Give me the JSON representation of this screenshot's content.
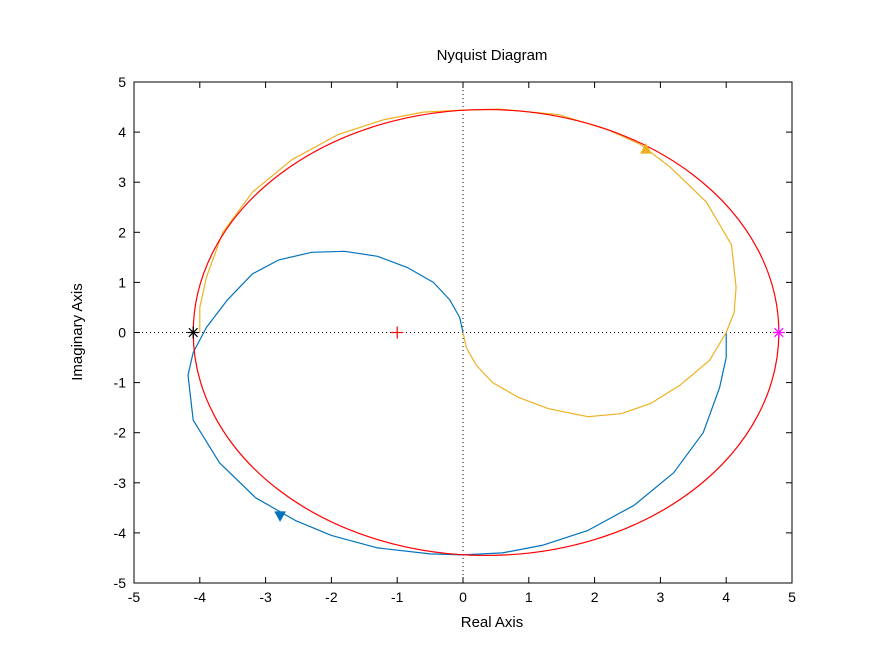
{
  "chart_data": {
    "type": "line",
    "title": "Nyquist Diagram",
    "xlabel": "Real Axis",
    "ylabel": "Imaginary Axis",
    "xlim": [
      -5,
      5
    ],
    "ylim": [
      -5,
      5
    ],
    "xticks": [
      "-5",
      "-4",
      "-3",
      "-2",
      "-1",
      "0",
      "1",
      "2",
      "3",
      "4",
      "5"
    ],
    "yticks": [
      "-5",
      "-4",
      "-3",
      "-2",
      "-1",
      "0",
      "1",
      "2",
      "3",
      "4",
      "5"
    ],
    "grid": false,
    "zero_lines": "dotted",
    "colors": {
      "blue": "#0072BD",
      "orange": "#EDB120",
      "red": "#FF0000",
      "black": "#000000",
      "magenta": "#FF00FF"
    },
    "series": [
      {
        "color": "#0072BD",
        "points": [
          [
            0,
            0
          ],
          [
            -0.05,
            0.3
          ],
          [
            -0.2,
            0.65
          ],
          [
            -0.45,
            1.0
          ],
          [
            -0.85,
            1.3
          ],
          [
            -1.3,
            1.52
          ],
          [
            -1.8,
            1.62
          ],
          [
            -2.3,
            1.6
          ],
          [
            -2.8,
            1.45
          ],
          [
            -3.2,
            1.17
          ],
          [
            -3.58,
            0.65
          ],
          [
            -3.9,
            0.1
          ],
          [
            -4.1,
            -0.4
          ],
          [
            -4.18,
            -0.85
          ],
          [
            -4.1,
            -1.75
          ],
          [
            -3.7,
            -2.6
          ],
          [
            -3.15,
            -3.3
          ],
          [
            -2.55,
            -3.75
          ],
          [
            -2.0,
            -4.05
          ],
          [
            -1.3,
            -4.3
          ],
          [
            -0.5,
            -4.42
          ],
          [
            0,
            -4.44
          ],
          [
            0.6,
            -4.4
          ],
          [
            1.2,
            -4.25
          ],
          [
            1.9,
            -3.95
          ],
          [
            2.6,
            -3.45
          ],
          [
            3.2,
            -2.8
          ],
          [
            3.65,
            -2.0
          ],
          [
            3.9,
            -1.1
          ],
          [
            4.0,
            -0.5
          ],
          [
            4.0,
            0
          ]
        ]
      },
      {
        "color": "#EDB120",
        "points": [
          [
            0,
            0
          ],
          [
            0.05,
            -0.3
          ],
          [
            0.2,
            -0.65
          ],
          [
            0.45,
            -1.0
          ],
          [
            0.85,
            -1.3
          ],
          [
            1.3,
            -1.52
          ],
          [
            1.9,
            -1.68
          ],
          [
            2.4,
            -1.62
          ],
          [
            2.85,
            -1.42
          ],
          [
            3.3,
            -1.05
          ],
          [
            3.75,
            -0.55
          ],
          [
            4.0,
            0
          ],
          [
            4.12,
            0.4
          ],
          [
            4.15,
            0.9
          ],
          [
            4.08,
            1.75
          ],
          [
            3.7,
            2.6
          ],
          [
            3.15,
            3.3
          ],
          [
            2.7,
            3.75
          ],
          [
            2.2,
            4.05
          ],
          [
            1.45,
            4.35
          ],
          [
            0.55,
            4.46
          ],
          [
            0,
            4.44
          ],
          [
            -0.6,
            4.4
          ],
          [
            -1.2,
            4.25
          ],
          [
            -1.9,
            3.95
          ],
          [
            -2.6,
            3.45
          ],
          [
            -3.2,
            2.8
          ],
          [
            -3.65,
            2.0
          ],
          [
            -3.9,
            1.1
          ],
          [
            -4.0,
            0.5
          ],
          [
            -4.0,
            0
          ]
        ]
      },
      {
        "color": "#FF0000",
        "type": "ellipse",
        "center": [
          0.35,
          0
        ],
        "rx": 4.45,
        "ry": 4.45
      }
    ],
    "arrows": [
      {
        "color": "#EDB120",
        "at": [
          2.78,
          3.66
        ],
        "direction": "up"
      },
      {
        "color": "#0072BD",
        "at": [
          -2.78,
          -3.66
        ],
        "direction": "down"
      }
    ],
    "markers": [
      {
        "symbol": "+",
        "color": "#FF0000",
        "at": [
          -1,
          0
        ]
      },
      {
        "symbol": "*",
        "color": "#000000",
        "at": [
          -4.1,
          0
        ]
      },
      {
        "symbol": "*",
        "color": "#FF00FF",
        "at": [
          4.8,
          0
        ]
      }
    ]
  }
}
